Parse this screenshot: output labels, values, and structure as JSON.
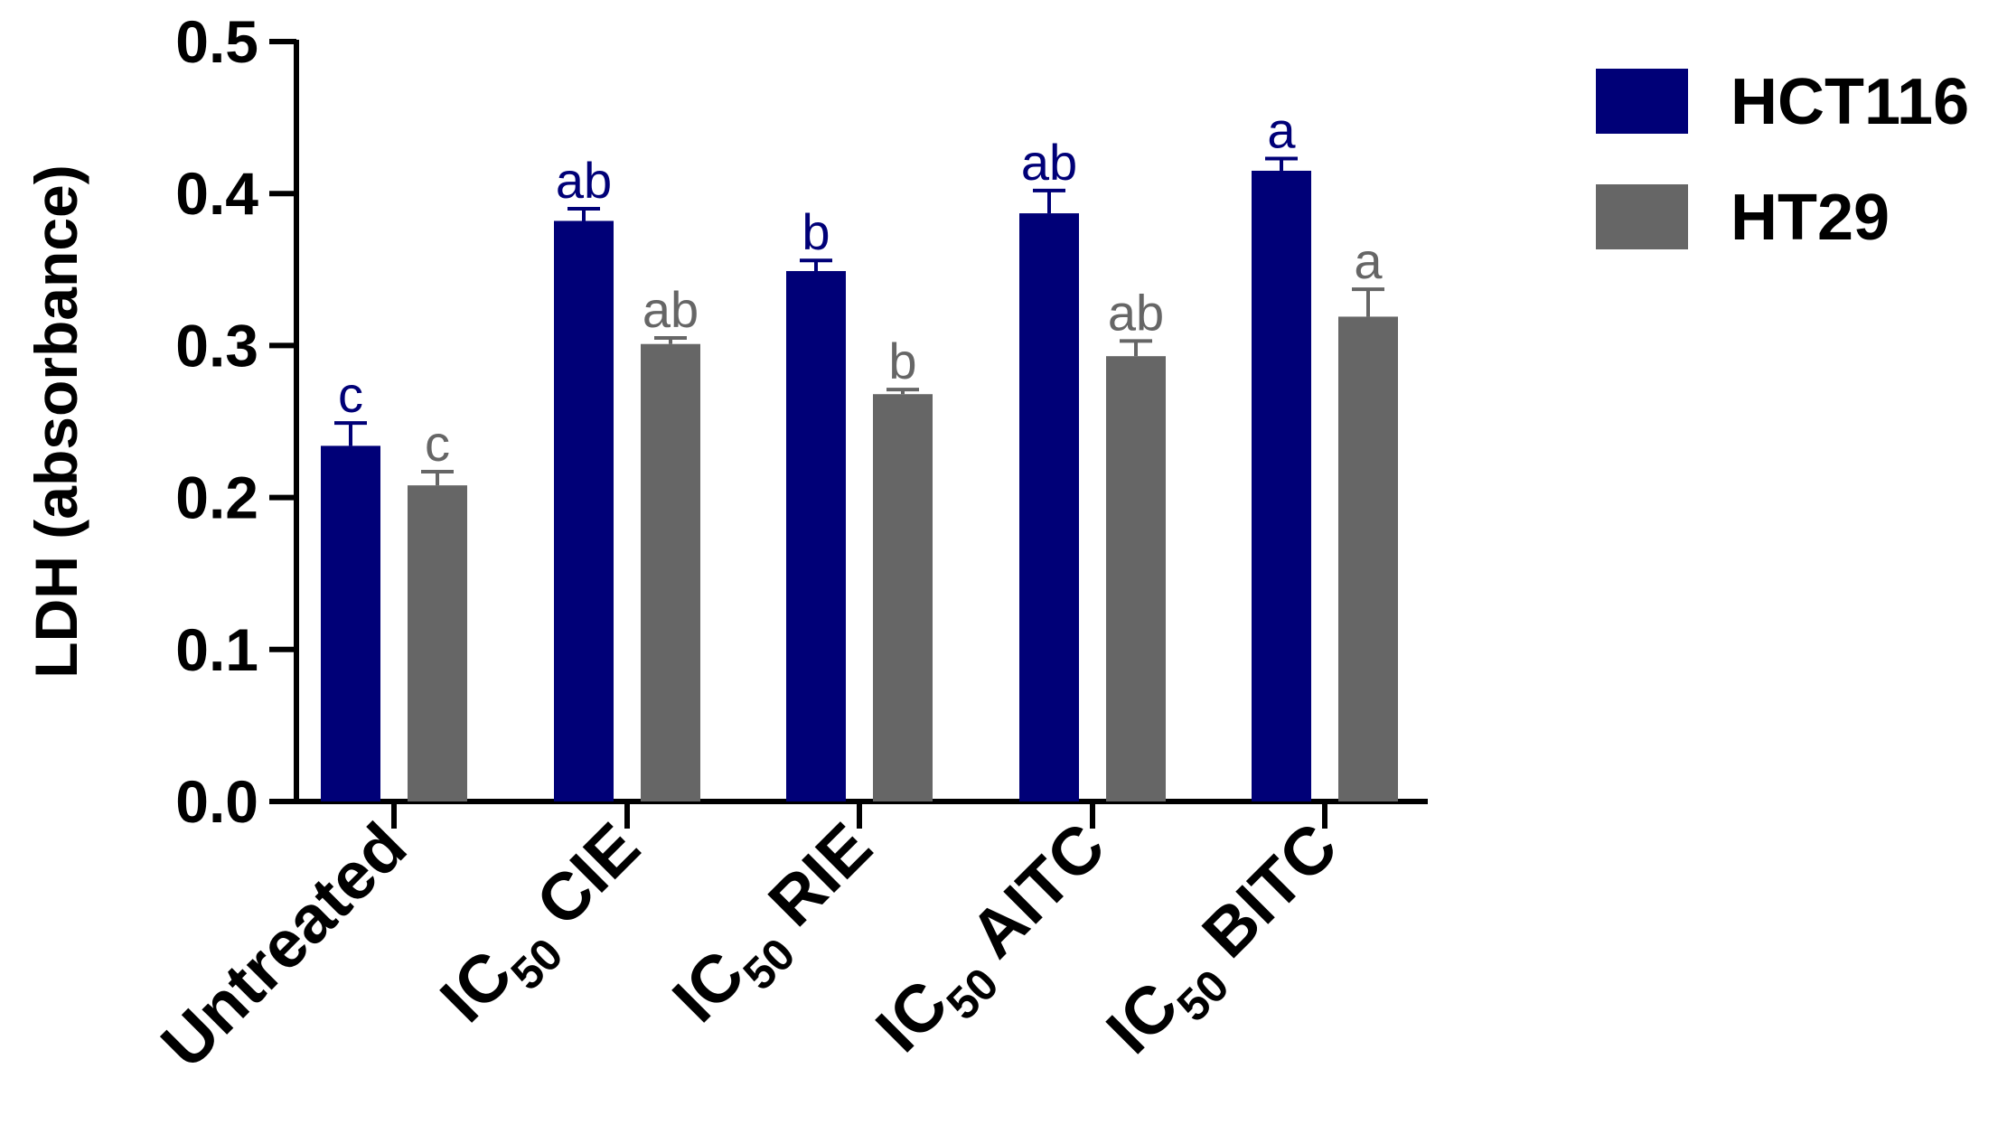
{
  "chart_data": {
    "type": "bar",
    "ylabel": "LDH (absorbance)",
    "ylim": [
      0,
      0.5
    ],
    "yticks": [
      "0.0",
      "0.1",
      "0.2",
      "0.3",
      "0.4",
      "0.5"
    ],
    "categories": [
      {
        "prefix": "Untreated",
        "sub": "",
        "suffix": ""
      },
      {
        "prefix": "IC",
        "sub": "50",
        "suffix": " CIE"
      },
      {
        "prefix": "IC",
        "sub": "50",
        "suffix": " RIE"
      },
      {
        "prefix": "IC",
        "sub": "50",
        "suffix": " AITC"
      },
      {
        "prefix": "IC",
        "sub": "50",
        "suffix": " BITC"
      }
    ],
    "series": [
      {
        "name": "HCT116",
        "color": "#000077",
        "label_color": "#000077",
        "values": [
          0.234,
          0.382,
          0.349,
          0.387,
          0.415
        ],
        "errors": [
          0.015,
          0.008,
          0.007,
          0.015,
          0.008
        ],
        "letters": [
          "c",
          "ab",
          "b",
          "ab",
          "a"
        ]
      },
      {
        "name": "HT29",
        "color": "#666666",
        "label_color": "#666666",
        "values": [
          0.208,
          0.301,
          0.268,
          0.293,
          0.319
        ],
        "errors": [
          0.009,
          0.004,
          0.003,
          0.01,
          0.018
        ],
        "letters": [
          "c",
          "ab",
          "b",
          "ab",
          "a"
        ]
      }
    ],
    "legend_position": "top-right",
    "grid": false
  }
}
